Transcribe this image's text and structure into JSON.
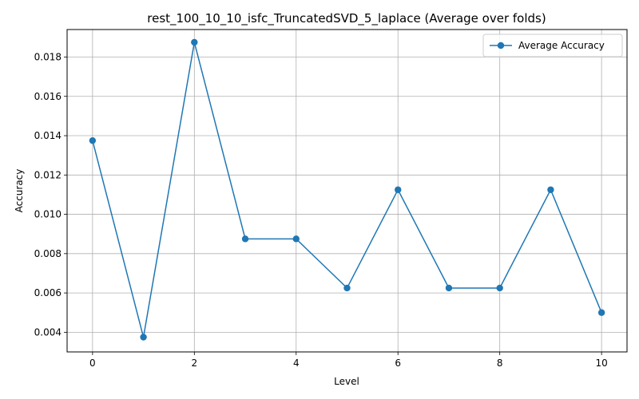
{
  "chart_data": {
    "type": "line",
    "title": "rest_100_10_10_isfc_TruncatedSVD_5_laplace (Average over folds)",
    "xlabel": "Level",
    "ylabel": "Accuracy",
    "x": [
      0,
      1,
      2,
      3,
      4,
      5,
      6,
      7,
      8,
      9,
      10
    ],
    "series": [
      {
        "name": "Average Accuracy",
        "values": [
          0.01375,
          0.00375,
          0.01875,
          0.00875,
          0.00875,
          0.00625,
          0.01125,
          0.00625,
          0.00625,
          0.01125,
          0.005
        ],
        "color": "#1f77b4"
      }
    ],
    "xlim": [
      -0.5,
      10.5
    ],
    "ylim": [
      0.003,
      0.0194
    ],
    "xticks": [
      "0",
      "2",
      "4",
      "6",
      "8",
      "10"
    ],
    "yticks": [
      "0.004",
      "0.006",
      "0.008",
      "0.010",
      "0.012",
      "0.014",
      "0.016",
      "0.018"
    ],
    "grid": true,
    "legend_position": "top-right"
  }
}
